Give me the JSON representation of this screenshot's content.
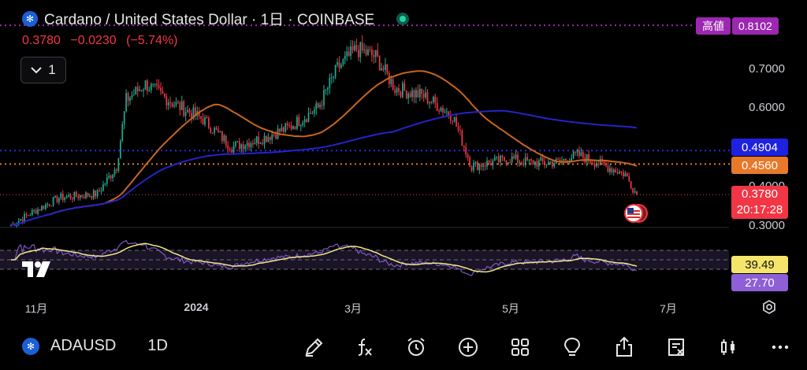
{
  "header": {
    "title": "Cardano / United States Dollar · 1日 · COINBASE",
    "price": "0.3780",
    "change": "−0.0230",
    "change_pct": "(−5.74%)",
    "indicator_count": "1"
  },
  "tags": {
    "high_label": "高値",
    "high_value": "0.8102",
    "ma_blue": "0.4904",
    "ma_orange": "0.4560",
    "last_price": "0.3780",
    "countdown": "20:17:28",
    "rsi": "39.49",
    "rsi_ma": "27.70"
  },
  "colors": {
    "up": "#22ab94",
    "down": "#f23645",
    "ma_blue": "#2424c8",
    "ma_orange": "#e07a22",
    "rsi": "#7e57c2",
    "rsi_ma": "#f0e68c",
    "high": "#9c27b0"
  },
  "chart_data": {
    "type": "candlestick",
    "symbol": "ADAUSD",
    "interval": "1D",
    "y_ticks": [
      "0.7000",
      "0.6000",
      "0.4000",
      "0.3000"
    ],
    "x_ticks": [
      "11月",
      "2024",
      "3月",
      "5月",
      "7月"
    ],
    "ylim": [
      0.3,
      0.81
    ],
    "ma_blue_last": 0.4904,
    "ma_orange_last": 0.456,
    "last_close": 0.378,
    "high": 0.8102,
    "closes_keypoints": [
      [
        0,
        0.3
      ],
      [
        10,
        0.33
      ],
      [
        25,
        0.37
      ],
      [
        45,
        0.38
      ],
      [
        55,
        0.45
      ],
      [
        60,
        0.62
      ],
      [
        70,
        0.66
      ],
      [
        85,
        0.61
      ],
      [
        100,
        0.57
      ],
      [
        115,
        0.5
      ],
      [
        130,
        0.52
      ],
      [
        145,
        0.55
      ],
      [
        160,
        0.6
      ],
      [
        170,
        0.7
      ],
      [
        180,
        0.75
      ],
      [
        190,
        0.73
      ],
      [
        200,
        0.65
      ],
      [
        215,
        0.63
      ],
      [
        230,
        0.58
      ],
      [
        240,
        0.45
      ],
      [
        250,
        0.46
      ],
      [
        260,
        0.47
      ],
      [
        270,
        0.46
      ],
      [
        285,
        0.46
      ],
      [
        295,
        0.48
      ],
      [
        310,
        0.45
      ],
      [
        320,
        0.43
      ],
      [
        326,
        0.378
      ]
    ],
    "rsi_lines": [
      70,
      50,
      30
    ]
  },
  "toolbar": {
    "symbol": "ADAUSD",
    "interval": "1D"
  }
}
